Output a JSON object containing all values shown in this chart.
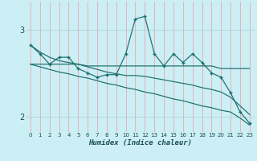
{
  "title": "",
  "xlabel": "Humidex (Indice chaleur)",
  "bg_color": "#cceef5",
  "plot_bg_color": "#cceef5",
  "grid_color_v": "#e8aaaa",
  "grid_color_h": "#aad4d8",
  "line_color": "#1a6e6a",
  "xlim": [
    -0.5,
    23.5
  ],
  "ylim": [
    1.82,
    3.32
  ],
  "yticks": [
    2,
    3
  ],
  "xticks": [
    0,
    1,
    2,
    3,
    4,
    5,
    6,
    7,
    8,
    9,
    10,
    11,
    12,
    13,
    14,
    15,
    16,
    17,
    18,
    19,
    20,
    21,
    22,
    23
  ],
  "series": [
    [
      2.82,
      2.72,
      2.6,
      2.68,
      2.68,
      2.55,
      2.5,
      2.45,
      2.48,
      2.48,
      2.72,
      3.12,
      3.15,
      2.72,
      2.58,
      2.72,
      2.62,
      2.72,
      2.62,
      2.5,
      2.45,
      2.27,
      2.05,
      1.92
    ],
    [
      2.6,
      2.6,
      2.6,
      2.6,
      2.6,
      2.6,
      2.58,
      2.58,
      2.58,
      2.58,
      2.58,
      2.58,
      2.58,
      2.58,
      2.58,
      2.58,
      2.58,
      2.58,
      2.58,
      2.58,
      2.55,
      2.55,
      2.55,
      2.55
    ],
    [
      2.82,
      2.74,
      2.68,
      2.64,
      2.62,
      2.6,
      2.57,
      2.54,
      2.51,
      2.49,
      2.47,
      2.47,
      2.46,
      2.44,
      2.42,
      2.4,
      2.38,
      2.36,
      2.33,
      2.31,
      2.28,
      2.22,
      2.12,
      2.02
    ],
    [
      2.6,
      2.57,
      2.54,
      2.51,
      2.49,
      2.46,
      2.44,
      2.41,
      2.38,
      2.36,
      2.33,
      2.31,
      2.28,
      2.26,
      2.23,
      2.2,
      2.18,
      2.15,
      2.12,
      2.1,
      2.07,
      2.05,
      1.98,
      1.9
    ]
  ],
  "markers_series": 0
}
